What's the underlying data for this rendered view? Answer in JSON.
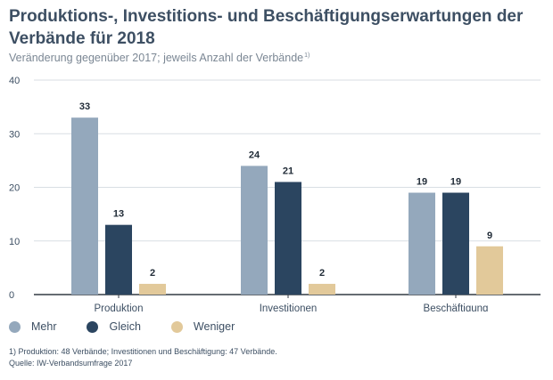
{
  "header": {
    "title": "Produktions-, Investitions- und Beschäftigungserwartungen der Verbände für 2018",
    "subtitle": "Veränderung gegenüber 2017; jeweils Anzahl der Verbände",
    "subtitle_footnote_mark": "1)"
  },
  "colors": {
    "mehr": "#94a8bc",
    "gleich": "#2b4560",
    "weniger": "#e2c99a",
    "grid": "#d9dee3",
    "axis": "#333b44"
  },
  "chart_data": {
    "type": "bar",
    "categories": [
      "Produktion",
      "Investitionen",
      "Beschäftigung"
    ],
    "series": [
      {
        "name": "Mehr",
        "values": [
          33,
          24,
          19
        ]
      },
      {
        "name": "Gleich",
        "values": [
          13,
          21,
          19
        ]
      },
      {
        "name": "Weniger",
        "values": [
          2,
          2,
          9
        ]
      }
    ],
    "ylim": [
      0,
      40
    ],
    "yticks": [
      0,
      10,
      20,
      30,
      40
    ],
    "grid": true,
    "legend_position": "bottom-left"
  },
  "footnotes": [
    "1) Produktion: 48 Verbände; Investitionen und Beschäftigung: 47 Verbände.",
    "Quelle: IW-Verbandsumfrage 2017"
  ]
}
